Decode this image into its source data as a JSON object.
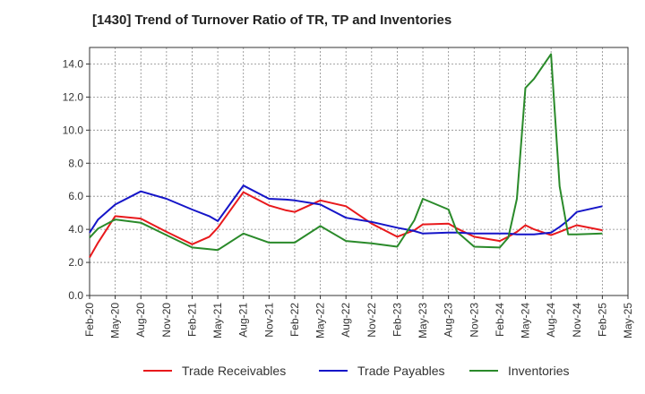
{
  "chart_data": {
    "type": "line",
    "title": "[1430]  Trend of Turnover Ratio of TR, TP and Inventories",
    "xlabel": "",
    "ylabel": "",
    "ylim": [
      0,
      15
    ],
    "y_ticks": [
      "0.0",
      "2.0",
      "4.0",
      "6.0",
      "8.0",
      "10.0",
      "12.0",
      "14.0"
    ],
    "x_tick_labels": [
      "Feb-20",
      "May-20",
      "Aug-20",
      "Nov-20",
      "Feb-21",
      "May-21",
      "Aug-21",
      "Nov-21",
      "Feb-22",
      "May-22",
      "Aug-22",
      "Nov-22",
      "Feb-23",
      "May-23",
      "Aug-23",
      "Nov-23",
      "Feb-24",
      "May-24",
      "Aug-24",
      "Nov-24",
      "Feb-25",
      "May-25"
    ],
    "grid": true,
    "legend_position": "bottom",
    "x": [
      "2020-02",
      "2020-03",
      "2020-05",
      "2020-08",
      "2020-11",
      "2021-02",
      "2021-04",
      "2021-05",
      "2021-08",
      "2021-11",
      "2022-01",
      "2022-02",
      "2022-05",
      "2022-08",
      "2022-11",
      "2023-02",
      "2023-04",
      "2023-05",
      "2023-08",
      "2023-09",
      "2023-11",
      "2024-02",
      "2024-03",
      "2024-04",
      "2024-05",
      "2024-06",
      "2024-08",
      "2024-09",
      "2024-10",
      "2024-11",
      "2025-02"
    ],
    "series": [
      {
        "name": "Trade Receivables",
        "color": "#e8191c",
        "values": [
          2.3,
          3.2,
          4.8,
          4.65,
          3.85,
          3.1,
          3.55,
          4.1,
          6.25,
          5.45,
          5.15,
          5.05,
          5.75,
          5.4,
          4.35,
          3.55,
          3.95,
          4.3,
          4.35,
          4.05,
          3.55,
          3.3,
          3.55,
          3.85,
          4.25,
          4.0,
          3.65,
          3.85,
          4.05,
          4.25,
          3.95
        ]
      },
      {
        "name": "Trade Payables",
        "color": "#1515c8",
        "values": [
          3.8,
          4.6,
          5.5,
          6.3,
          5.85,
          5.2,
          4.8,
          4.5,
          6.65,
          5.85,
          5.8,
          5.75,
          5.5,
          4.7,
          4.45,
          4.1,
          3.9,
          3.75,
          3.8,
          3.8,
          3.75,
          3.75,
          3.75,
          3.7,
          3.7,
          3.7,
          3.8,
          4.15,
          4.55,
          5.05,
          5.4
        ]
      },
      {
        "name": "Inventories",
        "color": "#2a8a2a",
        "values": [
          3.5,
          4.05,
          4.6,
          4.4,
          3.65,
          2.9,
          2.8,
          2.75,
          3.75,
          3.2,
          3.2,
          3.2,
          4.2,
          3.3,
          3.15,
          2.95,
          4.55,
          5.85,
          5.2,
          3.85,
          2.95,
          2.9,
          3.5,
          5.85,
          12.55,
          13.1,
          14.6,
          6.6,
          3.7,
          3.7,
          3.75
        ]
      }
    ]
  }
}
